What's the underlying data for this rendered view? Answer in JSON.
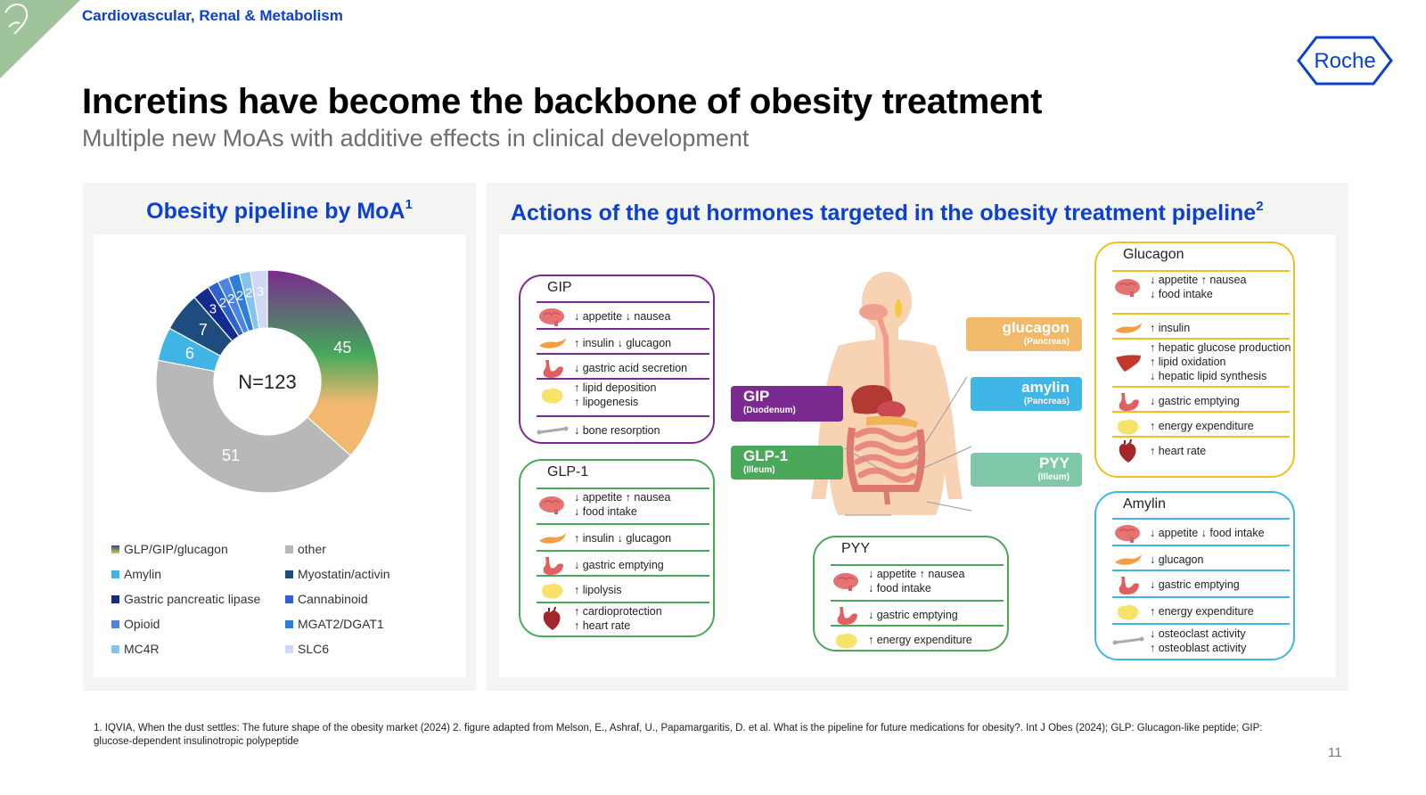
{
  "header": {
    "section_label": "Cardiovascular, Renal & Metabolism",
    "title": "Incretins have become the backbone of obesity treatment",
    "subtitle": "Multiple new MoAs with additive effects in clinical development",
    "logo_text": "Roche"
  },
  "left_panel": {
    "title": "Obesity pipeline by MoA",
    "title_sup": "1",
    "center_label": "N=123",
    "legend": [
      {
        "label": "GLP/GIP/glucagon",
        "color": "gradient"
      },
      {
        "label": "other",
        "color": "#b8b8b8"
      },
      {
        "label": "Amylin",
        "color": "#40b4e5"
      },
      {
        "label": "Myostatin/activin",
        "color": "#1e4c7e"
      },
      {
        "label": "Gastric pancreatic lipase",
        "color": "#132a8f"
      },
      {
        "label": "Cannabinoid",
        "color": "#2e63cf"
      },
      {
        "label": "Opioid",
        "color": "#4c84e4"
      },
      {
        "label": "MGAT2/DGAT1",
        "color": "#2d7ed8"
      },
      {
        "label": "MC4R",
        "color": "#86c2ee"
      },
      {
        "label": "SLC6",
        "color": "#cfd8f5"
      }
    ]
  },
  "chart_data": {
    "type": "pie",
    "total_label": "N=123",
    "categories": [
      "GLP/GIP/glucagon",
      "other",
      "Amylin",
      "Myostatin/activin",
      "Gastric pancreatic lipase",
      "Cannabinoid",
      "Opioid",
      "MGAT2/DGAT1",
      "MC4R",
      "SLC6"
    ],
    "values": [
      45,
      51,
      6,
      7,
      3,
      2,
      2,
      2,
      2,
      3
    ],
    "value_labels": [
      "45",
      "51",
      "6",
      "7",
      "3",
      "2",
      "2",
      "2",
      "2",
      "3"
    ],
    "legend_position": "bottom"
  },
  "right_panel": {
    "title": "Actions of the gut hormones targeted in the obesity treatment pipeline",
    "title_sup": "2",
    "hormone_labels": {
      "gip": {
        "name": "GIP",
        "sub": "(Duodenum)"
      },
      "glp1": {
        "name": "GLP-1",
        "sub": "(Illeum)"
      },
      "glucagon": {
        "name": "glucagon",
        "sub": "(Pancreas)"
      },
      "amylin": {
        "name": "amylin",
        "sub": "(Pancreas)"
      },
      "pyy": {
        "name": "PYY",
        "sub": "(Illeum)"
      }
    },
    "cards": {
      "gip": {
        "title": "GIP",
        "rows": [
          {
            "icon": "brain-icon",
            "lines": [
              "↓ appetite ↓ nausea"
            ]
          },
          {
            "icon": "pancreas-icon",
            "lines": [
              "↑ insulin      ↓ glucagon"
            ]
          },
          {
            "icon": "stomach-icon",
            "lines": [
              "↓ gastric acid secretion"
            ]
          },
          {
            "icon": "fat-icon",
            "lines": [
              "↑ lipid deposition",
              "↑ lipogenesis"
            ]
          },
          {
            "icon": "bone-icon",
            "lines": [
              "↓ bone resorption"
            ]
          }
        ]
      },
      "glp1": {
        "title": "GLP-1",
        "rows": [
          {
            "icon": "brain-icon",
            "lines": [
              "↓ appetite ↑ nausea",
              "↓ food intake"
            ]
          },
          {
            "icon": "pancreas-icon",
            "lines": [
              "↑ insulin      ↓ glucagon"
            ]
          },
          {
            "icon": "stomach-icon",
            "lines": [
              "↓ gastric emptying"
            ]
          },
          {
            "icon": "fat-icon",
            "lines": [
              "↑ lipolysis"
            ]
          },
          {
            "icon": "heart-icon",
            "lines": [
              "↑ cardioprotection",
              "↑ heart rate"
            ]
          }
        ]
      },
      "pyy": {
        "title": "PYY",
        "rows": [
          {
            "icon": "brain-icon",
            "lines": [
              "↓ appetite ↑ nausea",
              "↓ food intake"
            ]
          },
          {
            "icon": "stomach-icon",
            "lines": [
              "↓ gastric emptying"
            ]
          },
          {
            "icon": "fat-icon",
            "lines": [
              "↑ energy expenditure"
            ]
          }
        ]
      },
      "glucagon": {
        "title": "Glucagon",
        "rows": [
          {
            "icon": "brain-icon",
            "lines": [
              "↓ appetite ↑ nausea",
              "↓ food intake"
            ]
          },
          {
            "icon": "pancreas-icon",
            "lines": [
              "↑ insulin"
            ]
          },
          {
            "icon": "liver-icon",
            "lines": [
              "↑ hepatic glucose production",
              "↑ lipid oxidation",
              "↓ hepatic lipid synthesis"
            ]
          },
          {
            "icon": "stomach-icon",
            "lines": [
              "↓ gastric emptying"
            ]
          },
          {
            "icon": "fat-icon",
            "lines": [
              "↑ energy expenditure"
            ]
          },
          {
            "icon": "heart-icon",
            "lines": [
              "↑ heart rate"
            ]
          }
        ]
      },
      "amylin": {
        "title": "Amylin",
        "rows": [
          {
            "icon": "brain-icon",
            "lines": [
              "↓ appetite  ↓ food intake"
            ]
          },
          {
            "icon": "pancreas-icon",
            "lines": [
              "↓ glucagon"
            ]
          },
          {
            "icon": "stomach-icon",
            "lines": [
              "↓ gastric emptying"
            ]
          },
          {
            "icon": "fat-icon",
            "lines": [
              "↑ energy expenditure"
            ]
          },
          {
            "icon": "bone-icon",
            "lines": [
              "↓ osteoclast activity",
              "↑ osteoblast activity"
            ]
          }
        ]
      }
    },
    "colors": {
      "gip": "#7b2b8f",
      "glp1": "#4aa85a",
      "glucagon": "#f0c020",
      "glucagon_label": "#f0ba6a",
      "amylin": "#3fb6e6",
      "pyy": "#7fc9a6"
    }
  },
  "footnote": "1. IQVIA, When the dust settles: The future shape of the obesity market (2024)   2. figure adapted from Melson, E., Ashraf, U., Papamargaritis, D. et al. What is the pipeline for future medications for obesity?. Int J Obes (2024); GLP: Glucagon-like peptide; GIP: glucose-dependent insulinotropic polypeptide",
  "page_number": "11"
}
